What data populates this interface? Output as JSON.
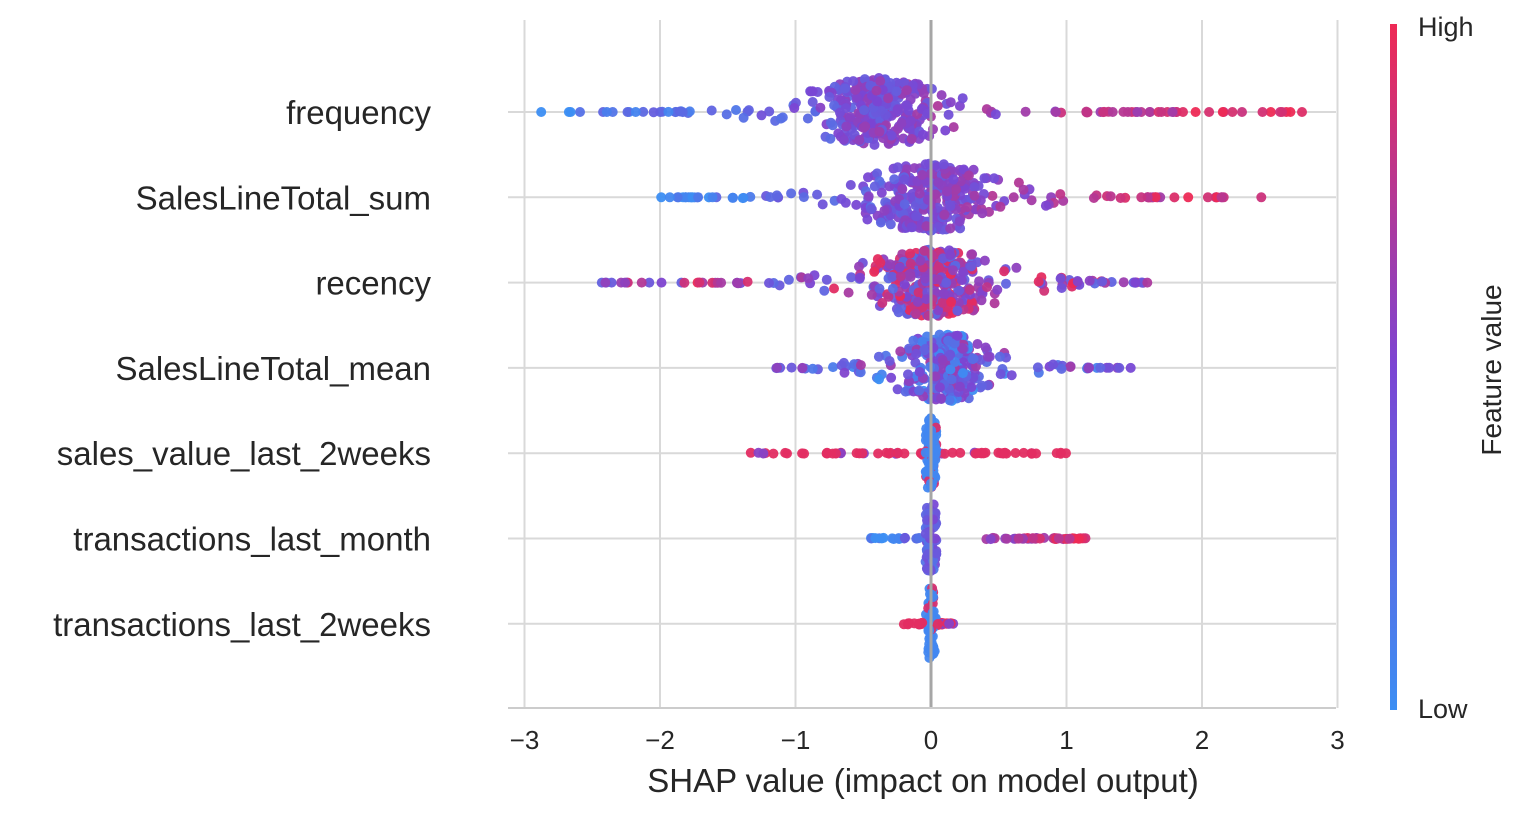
{
  "chart_data": {
    "type": "scatter",
    "subtype": "shap-beeswarm",
    "title": "",
    "xlabel": "SHAP value (impact on model output)",
    "ylabel": "",
    "xlim": [
      -3,
      3
    ],
    "xticks": [
      -3,
      -2,
      -1,
      0,
      1,
      2,
      3
    ],
    "xtick_labels": [
      "−3",
      "−2",
      "−1",
      "0",
      "1",
      "2",
      "3"
    ],
    "grid": true,
    "features": [
      {
        "name": "frequency",
        "min": -2.9,
        "max": 2.75,
        "center": -0.4,
        "high_side": "positive",
        "spread": 0.62
      },
      {
        "name": "SalesLineTotal_sum",
        "min": -2.0,
        "max": 2.45,
        "center": 0.0,
        "high_side": "positive",
        "spread": 0.6
      },
      {
        "name": "recency",
        "min": -2.5,
        "max": 1.6,
        "center": 0.0,
        "high_side": "mixed",
        "spread": 0.6
      },
      {
        "name": "SalesLineTotal_mean",
        "min": -1.15,
        "max": 1.5,
        "center": 0.1,
        "high_side": "mixed",
        "spread": 0.45
      },
      {
        "name": "sales_value_last_2weeks",
        "min": -1.35,
        "max": 1.05,
        "center": 0.0,
        "high_side": "both",
        "spread": 0.06
      },
      {
        "name": "transactions_last_month",
        "min": -0.45,
        "max": 1.15,
        "center": 0.0,
        "high_side": "positive",
        "spread": 0.04
      },
      {
        "name": "transactions_last_2weeks",
        "min": -0.2,
        "max": 0.2,
        "center": 0.0,
        "high_side": "both",
        "spread": 0.02
      }
    ],
    "colorbar": {
      "title": "Feature value",
      "high_label": "High",
      "low_label": "Low",
      "high_color": "#ff0052",
      "low_color": "#008bfb"
    }
  }
}
